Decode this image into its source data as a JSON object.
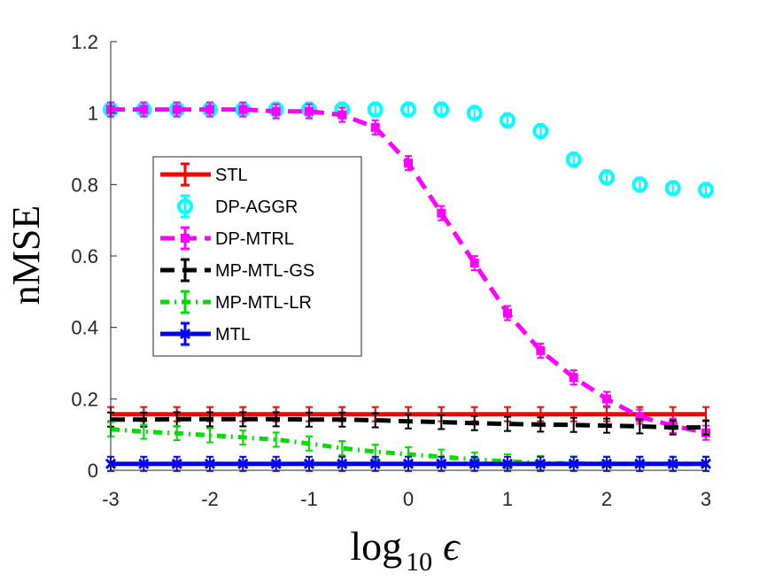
{
  "chart_data": {
    "type": "line",
    "title": "",
    "xlabel_base": "log",
    "xlabel_sub": "10",
    "xlabel_symbol": "ϵ",
    "ylabel": "nMSE",
    "xlim": [
      -3,
      3
    ],
    "ylim": [
      0,
      1.2
    ],
    "xticks": [
      -3,
      -2,
      -1,
      0,
      1,
      2,
      3
    ],
    "yticks": [
      0,
      0.2,
      0.4,
      0.6,
      0.8,
      1,
      1.2
    ],
    "ytick_labels": [
      "0",
      "0.2",
      "0.4",
      "0.6",
      "0.8",
      "1",
      "1.2"
    ],
    "legend_position": "upper-left",
    "x": [
      -3,
      -2.667,
      -2.333,
      -2,
      -1.667,
      -1.333,
      -1,
      -0.667,
      -0.333,
      0,
      0.333,
      0.667,
      1,
      1.333,
      1.667,
      2,
      2.333,
      2.667,
      3
    ],
    "series": [
      {
        "name": "STL",
        "color": "#ff0000",
        "style": "solid",
        "marker": "none",
        "values": [
          0.157,
          0.157,
          0.157,
          0.157,
          0.157,
          0.157,
          0.157,
          0.157,
          0.157,
          0.157,
          0.157,
          0.157,
          0.157,
          0.157,
          0.157,
          0.157,
          0.157,
          0.157,
          0.157
        ]
      },
      {
        "name": "DP-AGGR",
        "color": "#00ffff",
        "style": "none",
        "marker": "circle",
        "values": [
          1.01,
          1.01,
          1.01,
          1.01,
          1.01,
          1.01,
          1.01,
          1.01,
          1.01,
          1.01,
          1.01,
          1.0,
          0.98,
          0.95,
          0.87,
          0.82,
          0.8,
          0.79,
          0.785
        ]
      },
      {
        "name": "DP-MTRL",
        "color": "#ff00ff",
        "style": "dash",
        "marker": "square",
        "values": [
          1.01,
          1.01,
          1.01,
          1.01,
          1.01,
          1.005,
          1.005,
          0.995,
          0.96,
          0.86,
          0.72,
          0.58,
          0.44,
          0.335,
          0.26,
          0.2,
          0.15,
          0.125,
          0.105
        ]
      },
      {
        "name": "MP-MTL-GS",
        "color": "#000000",
        "style": "dash",
        "marker": "none",
        "values": [
          0.142,
          0.142,
          0.143,
          0.143,
          0.143,
          0.143,
          0.142,
          0.142,
          0.14,
          0.137,
          0.135,
          0.132,
          0.13,
          0.128,
          0.127,
          0.125,
          0.123,
          0.12,
          0.12
        ]
      },
      {
        "name": "MP-MTL-LR",
        "color": "#00dd00",
        "style": "dashdot",
        "marker": "none",
        "values": [
          0.115,
          0.108,
          0.104,
          0.098,
          0.092,
          0.086,
          0.075,
          0.062,
          0.052,
          0.045,
          0.038,
          0.03,
          0.025,
          0.02,
          0.019,
          0.018,
          0.018,
          0.018,
          0.018
        ]
      },
      {
        "name": "MTL",
        "color": "#0000ff",
        "style": "solid",
        "marker": "x",
        "values": [
          0.018,
          0.018,
          0.018,
          0.018,
          0.018,
          0.018,
          0.018,
          0.018,
          0.018,
          0.018,
          0.018,
          0.018,
          0.018,
          0.018,
          0.018,
          0.018,
          0.018,
          0.018,
          0.018
        ]
      }
    ]
  }
}
